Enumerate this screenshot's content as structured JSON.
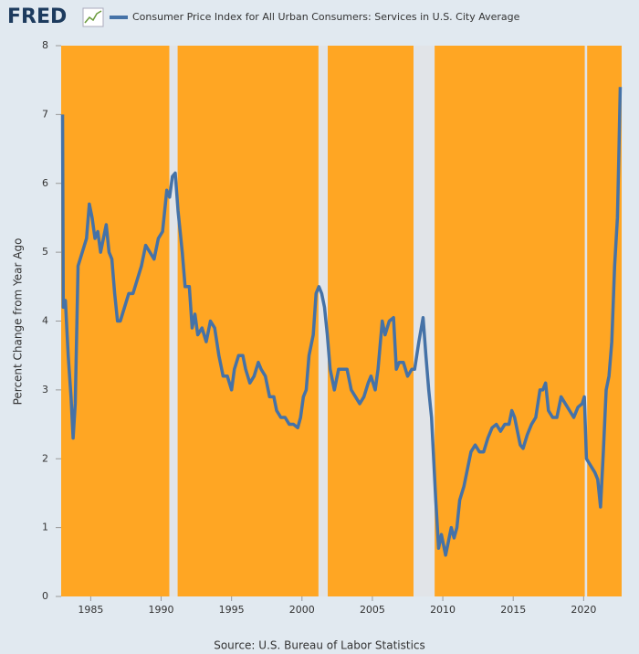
{
  "logo": "FRED",
  "chart_data": {
    "type": "line",
    "y_label": "Percent Change from Year Ago",
    "source": "Source: U.S. Bureau of Labor Statistics",
    "background_color": "#ffa623",
    "shading_color": "#e1e4e8",
    "shaded_periods": [
      [
        1990.58,
        1991.17
      ],
      [
        2001.17,
        2001.83
      ],
      [
        2007.92,
        2009.42
      ],
      [
        2020.08,
        2020.25
      ]
    ],
    "xlim": [
      1982.9,
      2022.7
    ],
    "ylim": [
      0,
      8
    ],
    "xticks": [
      1985,
      1990,
      1995,
      2000,
      2005,
      2010,
      2015,
      2020
    ],
    "yticks": [
      0,
      1,
      2,
      3,
      4,
      5,
      6,
      7,
      8
    ],
    "x": [
      1983.0,
      1983.05,
      1983.2,
      1983.4,
      1983.6,
      1983.75,
      1983.9,
      1984.1,
      1984.4,
      1984.7,
      1984.9,
      1985.1,
      1985.3,
      1985.5,
      1985.7,
      1985.9,
      1986.1,
      1986.3,
      1986.5,
      1986.7,
      1986.9,
      1987.1,
      1987.4,
      1987.7,
      1988.0,
      1988.3,
      1988.6,
      1988.9,
      1989.2,
      1989.5,
      1989.8,
      1990.1,
      1990.4,
      1990.6,
      1990.8,
      1991.0,
      1991.2,
      1991.5,
      1991.7,
      1992.0,
      1992.2,
      1992.4,
      1992.6,
      1992.9,
      1993.2,
      1993.5,
      1993.8,
      1994.1,
      1994.4,
      1994.7,
      1995.0,
      1995.2,
      1995.5,
      1995.8,
      1996.0,
      1996.3,
      1996.6,
      1996.9,
      1997.1,
      1997.4,
      1997.7,
      1998.0,
      1998.2,
      1998.5,
      1998.8,
      1999.1,
      1999.4,
      1999.7,
      1999.9,
      2000.1,
      2000.3,
      2000.5,
      2000.8,
      2001.0,
      2001.2,
      2001.4,
      2001.6,
      2001.8,
      2002.0,
      2002.3,
      2002.6,
      2002.9,
      2003.2,
      2003.5,
      2003.8,
      2004.1,
      2004.4,
      2004.7,
      2004.9,
      2005.2,
      2005.4,
      2005.7,
      2005.9,
      2006.2,
      2006.5,
      2006.7,
      2006.9,
      2007.2,
      2007.5,
      2007.8,
      2008.0,
      2008.3,
      2008.6,
      2008.8,
      2009.0,
      2009.2,
      2009.5,
      2009.7,
      2009.9,
      2010.2,
      2010.4,
      2010.6,
      2010.8,
      2011.0,
      2011.2,
      2011.5,
      2011.8,
      2012.0,
      2012.3,
      2012.6,
      2012.9,
      2013.2,
      2013.5,
      2013.8,
      2014.1,
      2014.4,
      2014.7,
      2014.9,
      2015.1,
      2015.3,
      2015.5,
      2015.7,
      2016.0,
      2016.3,
      2016.6,
      2016.9,
      2017.1,
      2017.3,
      2017.5,
      2017.8,
      2018.1,
      2018.4,
      2018.7,
      2019.0,
      2019.3,
      2019.6,
      2019.9,
      2020.05,
      2020.2,
      2020.5,
      2020.8,
      2021.0,
      2021.2,
      2021.4,
      2021.6,
      2021.8,
      2022.0,
      2022.2,
      2022.4,
      2022.5,
      2022.6
    ],
    "series": [
      {
        "name": "Consumer Price Index for All Urban Consumers: Services in U.S. City Average",
        "color": "#4572a7",
        "values": [
          7.0,
          4.2,
          4.3,
          3.5,
          2.9,
          2.3,
          2.8,
          4.8,
          5.0,
          5.2,
          5.7,
          5.5,
          5.2,
          5.3,
          5.0,
          5.2,
          5.4,
          5.0,
          4.9,
          4.4,
          4.0,
          4.0,
          4.2,
          4.4,
          4.4,
          4.6,
          4.8,
          5.1,
          5.0,
          4.9,
          5.2,
          5.3,
          5.9,
          5.8,
          6.1,
          6.15,
          5.6,
          5.0,
          4.5,
          4.5,
          3.9,
          4.1,
          3.8,
          3.9,
          3.7,
          4.0,
          3.9,
          3.5,
          3.2,
          3.2,
          3.0,
          3.3,
          3.5,
          3.5,
          3.3,
          3.1,
          3.2,
          3.4,
          3.3,
          3.2,
          2.9,
          2.9,
          2.7,
          2.6,
          2.6,
          2.5,
          2.5,
          2.45,
          2.6,
          2.9,
          3.0,
          3.5,
          3.8,
          4.4,
          4.5,
          4.4,
          4.2,
          3.8,
          3.3,
          3.0,
          3.3,
          3.3,
          3.3,
          3.0,
          2.9,
          2.8,
          2.9,
          3.1,
          3.2,
          3.0,
          3.3,
          4.0,
          3.8,
          4.0,
          4.05,
          3.3,
          3.4,
          3.4,
          3.2,
          3.3,
          3.3,
          3.7,
          4.05,
          3.5,
          3.0,
          2.6,
          1.4,
          0.7,
          0.9,
          0.6,
          0.8,
          1.0,
          0.85,
          1.0,
          1.4,
          1.6,
          1.9,
          2.1,
          2.2,
          2.1,
          2.1,
          2.3,
          2.45,
          2.5,
          2.4,
          2.5,
          2.5,
          2.7,
          2.6,
          2.4,
          2.2,
          2.15,
          2.35,
          2.5,
          2.6,
          3.0,
          3.0,
          3.1,
          2.7,
          2.6,
          2.6,
          2.9,
          2.8,
          2.7,
          2.6,
          2.75,
          2.8,
          2.9,
          2.0,
          1.9,
          1.8,
          1.7,
          1.3,
          2.1,
          3.0,
          3.2,
          3.7,
          4.8,
          5.5,
          6.4,
          7.4
        ]
      }
    ]
  }
}
